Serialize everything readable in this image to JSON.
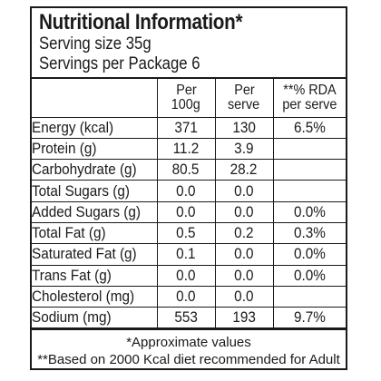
{
  "panel": {
    "title": "Nutritional Information*",
    "serving_size": "Serving size 35g",
    "servings_per_package": "Servings per Package 6"
  },
  "table": {
    "headers": {
      "per_100g_line1": "Per",
      "per_100g_line2": "100g",
      "per_serve_line1": "Per",
      "per_serve_line2": "serve",
      "rda_line1": "**% RDA",
      "rda_line2": "per serve"
    },
    "rows": [
      {
        "name": "Energy (kcal)",
        "per_100g": "371",
        "per_serve": "130",
        "rda": "6.5%"
      },
      {
        "name": "Protein (g)",
        "per_100g": "11.2",
        "per_serve": "3.9",
        "rda": ""
      },
      {
        "name": "Carbohydrate (g)",
        "per_100g": "80.5",
        "per_serve": "28.2",
        "rda": ""
      },
      {
        "name": "Total Sugars (g)",
        "per_100g": "0.0",
        "per_serve": "0.0",
        "rda": ""
      },
      {
        "name": "Added Sugars (g)",
        "per_100g": "0.0",
        "per_serve": "0.0",
        "rda": "0.0%"
      },
      {
        "name": "Total Fat (g)",
        "per_100g": "0.5",
        "per_serve": "0.2",
        "rda": "0.3%"
      },
      {
        "name": "Saturated Fat (g)",
        "per_100g": "0.1",
        "per_serve": "0.0",
        "rda": "0.0%"
      },
      {
        "name": "Trans Fat (g)",
        "per_100g": "0.0",
        "per_serve": "0.0",
        "rda": "0.0%"
      },
      {
        "name": "Cholesterol (mg)",
        "per_100g": "0.0",
        "per_serve": "0.0",
        "rda": ""
      },
      {
        "name": "Sodium (mg)",
        "per_100g": "553",
        "per_serve": "193",
        "rda": "9.7%"
      }
    ]
  },
  "footer": {
    "note1": "*Approximate values",
    "note2": "**Based on 2000 Kcal diet recommended for Adult"
  }
}
